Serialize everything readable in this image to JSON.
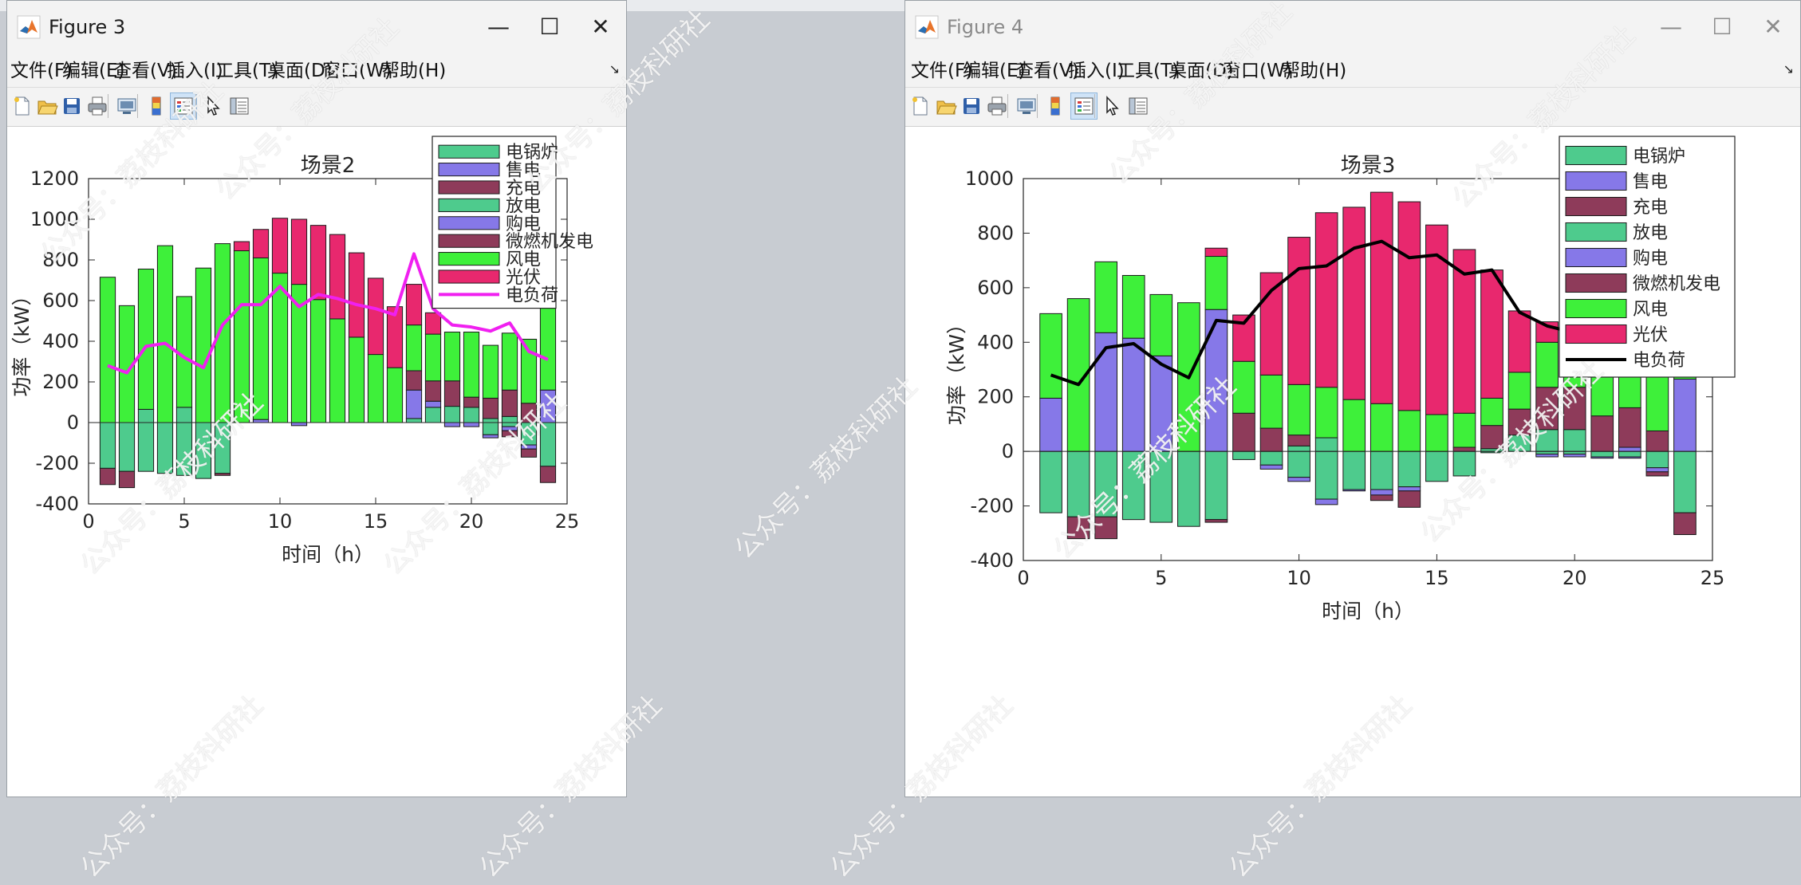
{
  "windows": [
    {
      "id": "fig3",
      "title": "Figure 3",
      "active": true,
      "menu": [
        "文件(F)",
        "编辑(E)",
        "查看(V)",
        "插入(I)",
        "工具(T)",
        "桌面(D)",
        "窗口(W)",
        "帮助(H)"
      ],
      "chart_data": {
        "type": "bar",
        "stacked": true,
        "title": "场景2",
        "xlabel": "时间（h）",
        "ylabel": "功率（kW）",
        "xlim": [
          0,
          25
        ],
        "ylim": [
          -400,
          1200
        ],
        "xticks": [
          0,
          5,
          10,
          15,
          20,
          25
        ],
        "yticks": [
          -400,
          -200,
          0,
          200,
          400,
          600,
          800,
          1000,
          1200
        ],
        "legend_position": "top-right",
        "x": [
          1,
          2,
          3,
          4,
          5,
          6,
          7,
          8,
          9,
          10,
          11,
          12,
          13,
          14,
          15,
          16,
          17,
          18,
          19,
          20,
          21,
          22,
          23,
          24
        ],
        "series": [
          {
            "name": "电锅炉",
            "color": "#4ecb8d",
            "values": [
              -225,
              -240,
              -240,
              -250,
              -260,
              -275,
              -250,
              0,
              0,
              0,
              0,
              0,
              0,
              0,
              0,
              0,
              0,
              0,
              0,
              0,
              -60,
              -20,
              -110,
              -215
            ]
          },
          {
            "name": "售电",
            "color": "#8678e8",
            "values": [
              0,
              0,
              0,
              0,
              0,
              0,
              0,
              0,
              0,
              0,
              -15,
              0,
              0,
              0,
              0,
              0,
              0,
              0,
              -20,
              -20,
              -15,
              -20,
              -20,
              0
            ]
          },
          {
            "name": "充电",
            "color": "#8e3b5a",
            "values": [
              -80,
              -80,
              0,
              0,
              0,
              0,
              -10,
              0,
              0,
              0,
              0,
              0,
              0,
              0,
              0,
              0,
              0,
              0,
              0,
              0,
              0,
              -30,
              -40,
              -80
            ]
          },
          {
            "name": "放电",
            "color": "#4ecb8d",
            "values": [
              0,
              0,
              65,
              0,
              75,
              0,
              0,
              0,
              0,
              0,
              0,
              0,
              0,
              0,
              0,
              0,
              20,
              75,
              80,
              75,
              20,
              30,
              0,
              0
            ]
          },
          {
            "name": "购电",
            "color": "#8678e8",
            "values": [
              0,
              0,
              0,
              0,
              0,
              0,
              0,
              0,
              15,
              0,
              0,
              0,
              0,
              0,
              0,
              0,
              140,
              30,
              0,
              0,
              0,
              0,
              0,
              160
            ]
          },
          {
            "name": "微燃机发电",
            "color": "#8e3b5a",
            "values": [
              0,
              0,
              0,
              0,
              0,
              0,
              0,
              0,
              0,
              0,
              0,
              0,
              0,
              0,
              0,
              0,
              95,
              100,
              125,
              50,
              100,
              130,
              95,
              0
            ]
          },
          {
            "name": "风电",
            "color": "#3ef03a",
            "values": [
              715,
              575,
              690,
              870,
              545,
              760,
              880,
              845,
              795,
              735,
              680,
              605,
              510,
              420,
              335,
              270,
              225,
              230,
              240,
              320,
              260,
              280,
              315,
              460
            ]
          },
          {
            "name": "光伏",
            "color": "#e8286e",
            "values": [
              0,
              0,
              0,
              0,
              0,
              0,
              0,
              45,
              140,
              270,
              320,
              365,
              415,
              415,
              375,
              300,
              200,
              105,
              0,
              0,
              0,
              0,
              0,
              0
            ]
          }
        ],
        "load": {
          "name": "电负荷",
          "color": "#f020f0",
          "values": [
            280,
            245,
            375,
            390,
            320,
            270,
            480,
            580,
            580,
            670,
            570,
            630,
            610,
            580,
            560,
            530,
            830,
            560,
            480,
            470,
            450,
            490,
            350,
            310
          ]
        }
      }
    },
    {
      "id": "fig4",
      "title": "Figure 4",
      "active": false,
      "menu": [
        "文件(F)",
        "编辑(E)",
        "查看(V)",
        "插入(I)",
        "工具(T)",
        "桌面(D)",
        "窗口(W)",
        "帮助(H)"
      ],
      "chart_data": {
        "type": "bar",
        "stacked": true,
        "title": "场景3",
        "xlabel": "时间（h）",
        "ylabel": "功率（kW）",
        "xlim": [
          0,
          25
        ],
        "ylim": [
          -400,
          1000
        ],
        "xticks": [
          0,
          5,
          10,
          15,
          20,
          25
        ],
        "yticks": [
          -400,
          -200,
          0,
          200,
          400,
          600,
          800,
          1000
        ],
        "legend_position": "top-right",
        "x": [
          1,
          2,
          3,
          4,
          5,
          6,
          7,
          8,
          9,
          10,
          11,
          12,
          13,
          14,
          15,
          16,
          17,
          18,
          19,
          20,
          21,
          22,
          23,
          24
        ],
        "series": [
          {
            "name": "电锅炉",
            "color": "#4ecb8d",
            "values": [
              -225,
              -240,
              -240,
              -250,
              -260,
              -275,
              -250,
              -30,
              -50,
              -95,
              -175,
              -140,
              -140,
              -130,
              -110,
              -90,
              -5,
              0,
              -10,
              -10,
              -20,
              -20,
              -60,
              -225
            ]
          },
          {
            "name": "售电",
            "color": "#8678e8",
            "values": [
              0,
              0,
              0,
              0,
              0,
              0,
              0,
              0,
              -15,
              -15,
              -20,
              -5,
              -20,
              -15,
              0,
              0,
              0,
              0,
              -10,
              -10,
              -5,
              -5,
              -15,
              0
            ]
          },
          {
            "name": "充电",
            "color": "#8e3b5a",
            "values": [
              0,
              -80,
              -80,
              0,
              0,
              0,
              -10,
              0,
              0,
              0,
              0,
              0,
              -20,
              -60,
              0,
              0,
              0,
              0,
              0,
              0,
              0,
              0,
              -15,
              -80
            ]
          },
          {
            "name": "放电",
            "color": "#4ecb8d",
            "values": [
              0,
              0,
              0,
              0,
              0,
              0,
              0,
              0,
              0,
              20,
              50,
              0,
              0,
              0,
              0,
              0,
              10,
              60,
              80,
              80,
              0,
              0,
              0,
              0
            ]
          },
          {
            "name": "购电",
            "color": "#8678e8",
            "values": [
              195,
              0,
              435,
              415,
              350,
              0,
              520,
              0,
              0,
              0,
              0,
              0,
              0,
              0,
              0,
              0,
              0,
              0,
              0,
              0,
              0,
              15,
              0,
              265
            ]
          },
          {
            "name": "微燃机发电",
            "color": "#8e3b5a",
            "values": [
              0,
              0,
              0,
              0,
              0,
              0,
              0,
              140,
              85,
              40,
              0,
              0,
              0,
              0,
              0,
              15,
              85,
              95,
              155,
              155,
              130,
              145,
              75,
              0
            ]
          },
          {
            "name": "风电",
            "color": "#3ef03a",
            "values": [
              310,
              560,
              260,
              230,
              225,
              545,
              195,
              190,
              195,
              185,
              185,
              190,
              175,
              150,
              135,
              125,
              100,
              135,
              165,
              180,
              245,
              260,
              300,
              245
            ]
          },
          {
            "name": "光伏",
            "color": "#e8286e",
            "values": [
              0,
              0,
              0,
              0,
              0,
              0,
              30,
              170,
              375,
              540,
              640,
              705,
              775,
              765,
              695,
              600,
              470,
              225,
              75,
              0,
              0,
              0,
              0,
              0
            ]
          }
        ],
        "load": {
          "name": "电负荷",
          "color": "#000000",
          "values": [
            280,
            245,
            380,
            395,
            320,
            270,
            480,
            470,
            590,
            670,
            680,
            745,
            770,
            710,
            720,
            650,
            665,
            510,
            460,
            435,
            365,
            425,
            285,
            310
          ]
        }
      }
    }
  ],
  "watermark": "公众号：荔枝科研社",
  "icons": [
    "new-figure-icon",
    "open-icon",
    "save-icon",
    "print-icon",
    "link-icon",
    "colorbar-icon",
    "legend-icon",
    "pointer-icon",
    "property-inspector-icon"
  ]
}
